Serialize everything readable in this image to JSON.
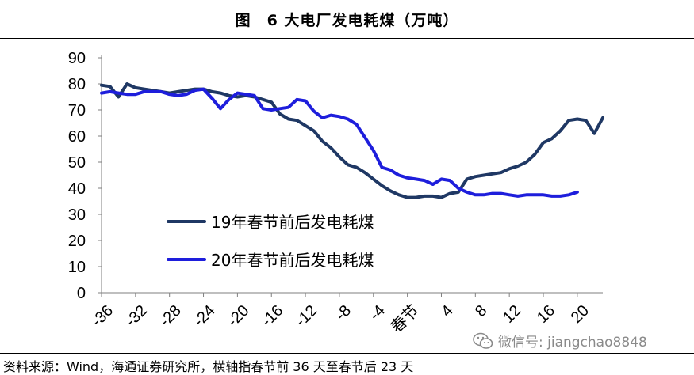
{
  "figure": {
    "title": "图　6 大电厂发电耗煤（万吨）",
    "source": "资料来源：Wind，海通证券研究所，横轴指春节前 36 天至春节后 23 天",
    "watermark": "微信号: jiangchao8848",
    "watermark_icon": "wechat-icon"
  },
  "chart_data": {
    "type": "line",
    "title": "6 大电厂发电耗煤（万吨）",
    "xlabel": "",
    "ylabel": "",
    "xlim": [
      -36,
      23
    ],
    "ylim": [
      0,
      90
    ],
    "yticks": [
      0,
      10,
      20,
      30,
      40,
      50,
      60,
      70,
      80,
      90
    ],
    "xticks": [
      {
        "value": -36,
        "label": "-36"
      },
      {
        "value": -32,
        "label": "-32"
      },
      {
        "value": -28,
        "label": "-28"
      },
      {
        "value": -24,
        "label": "-24"
      },
      {
        "value": -20,
        "label": "-20"
      },
      {
        "value": -16,
        "label": "-16"
      },
      {
        "value": -12,
        "label": "-12"
      },
      {
        "value": -8,
        "label": "-8"
      },
      {
        "value": -4,
        "label": "-4"
      },
      {
        "value": 0,
        "label": "春节"
      },
      {
        "value": 4,
        "label": "4"
      },
      {
        "value": 8,
        "label": "8"
      },
      {
        "value": 12,
        "label": "12"
      },
      {
        "value": 16,
        "label": "16"
      },
      {
        "value": 20,
        "label": "20"
      }
    ],
    "grid": false,
    "legend_position": "center-left",
    "series": [
      {
        "name": "19年春节前后发电耗煤",
        "color": "#1F3864",
        "points": [
          [
            -36,
            79.5
          ],
          [
            -35,
            79
          ],
          [
            -34,
            75
          ],
          [
            -33,
            80
          ],
          [
            -32,
            78.5
          ],
          [
            -31,
            78
          ],
          [
            -30,
            77.5
          ],
          [
            -29,
            77
          ],
          [
            -28,
            76.5
          ],
          [
            -27,
            77
          ],
          [
            -26,
            77.5
          ],
          [
            -25,
            78
          ],
          [
            -24,
            78
          ],
          [
            -23,
            77
          ],
          [
            -22,
            76.5
          ],
          [
            -21,
            75.5
          ],
          [
            -20,
            75
          ],
          [
            -19,
            75.5
          ],
          [
            -18,
            75
          ],
          [
            -17,
            74
          ],
          [
            -16,
            73
          ],
          [
            -15,
            68.5
          ],
          [
            -14,
            66.5
          ],
          [
            -13,
            66
          ],
          [
            -12,
            64
          ],
          [
            -11,
            62
          ],
          [
            -10,
            58
          ],
          [
            -9,
            55.5
          ],
          [
            -8,
            52
          ],
          [
            -7,
            49
          ],
          [
            -6,
            48
          ],
          [
            -5,
            46
          ],
          [
            -4,
            43.5
          ],
          [
            -3,
            41
          ],
          [
            -2,
            39
          ],
          [
            -1,
            37.5
          ],
          [
            0,
            36.5
          ],
          [
            1,
            36.5
          ],
          [
            2,
            37
          ],
          [
            3,
            37
          ],
          [
            4,
            36.5
          ],
          [
            5,
            38
          ],
          [
            6,
            38.5
          ],
          [
            7,
            43.5
          ],
          [
            8,
            44.5
          ],
          [
            9,
            45
          ],
          [
            10,
            45.5
          ],
          [
            11,
            46
          ],
          [
            12,
            47.5
          ],
          [
            13,
            48.5
          ],
          [
            14,
            50
          ],
          [
            15,
            53
          ],
          [
            16,
            57.5
          ],
          [
            17,
            59
          ],
          [
            18,
            62
          ],
          [
            19,
            66
          ],
          [
            20,
            66.5
          ],
          [
            21,
            66
          ],
          [
            22,
            61
          ],
          [
            23,
            67
          ]
        ]
      },
      {
        "name": "20年春节前后发电耗煤",
        "color": "#1E1EDC",
        "points": [
          [
            -36,
            76.5
          ],
          [
            -35,
            77
          ],
          [
            -34,
            76.5
          ],
          [
            -33,
            76
          ],
          [
            -32,
            76
          ],
          [
            -31,
            77
          ],
          [
            -30,
            77
          ],
          [
            -29,
            77
          ],
          [
            -28,
            76
          ],
          [
            -27,
            75.5
          ],
          [
            -26,
            76
          ],
          [
            -25,
            77.5
          ],
          [
            -24,
            78
          ],
          [
            -23,
            74.5
          ],
          [
            -22,
            70.5
          ],
          [
            -21,
            74
          ],
          [
            -20,
            76.5
          ],
          [
            -19,
            76
          ],
          [
            -18,
            75.5
          ],
          [
            -17,
            70.5
          ],
          [
            -16,
            70
          ],
          [
            -15,
            70.5
          ],
          [
            -14,
            71
          ],
          [
            -13,
            74
          ],
          [
            -12,
            73.5
          ],
          [
            -11,
            69.5
          ],
          [
            -10,
            67
          ],
          [
            -9,
            68
          ],
          [
            -8,
            67.5
          ],
          [
            -7,
            66.5
          ],
          [
            -6,
            64.5
          ],
          [
            -5,
            59.5
          ],
          [
            -4,
            54.5
          ],
          [
            -3,
            48
          ],
          [
            -2,
            47
          ],
          [
            -1,
            45
          ],
          [
            0,
            44
          ],
          [
            1,
            43.5
          ],
          [
            2,
            43
          ],
          [
            3,
            41.5
          ],
          [
            4,
            43.5
          ],
          [
            5,
            43
          ],
          [
            6,
            40
          ],
          [
            7,
            38.5
          ],
          [
            8,
            37.5
          ],
          [
            9,
            37.5
          ],
          [
            10,
            38
          ],
          [
            11,
            38
          ],
          [
            12,
            37.5
          ],
          [
            13,
            37
          ],
          [
            14,
            37.5
          ],
          [
            15,
            37.5
          ],
          [
            16,
            37.5
          ],
          [
            17,
            37
          ],
          [
            18,
            37
          ],
          [
            19,
            37.5
          ],
          [
            20,
            38.5
          ]
        ]
      }
    ]
  }
}
